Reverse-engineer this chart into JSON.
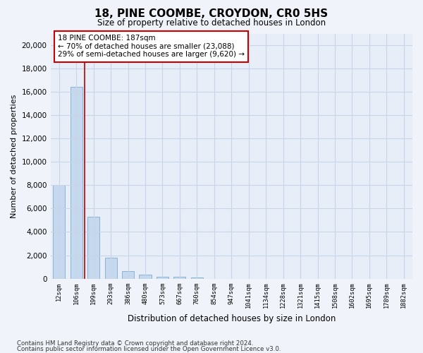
{
  "title": "18, PINE COOMBE, CROYDON, CR0 5HS",
  "subtitle": "Size of property relative to detached houses in London",
  "xlabel": "Distribution of detached houses by size in London",
  "ylabel": "Number of detached properties",
  "bar_color": "#c5d8ee",
  "bar_edge_color": "#7aadd4",
  "vline_color": "#bb0000",
  "annotation_title": "18 PINE COOMBE: 187sqm",
  "annotation_line1": "← 70% of detached houses are smaller (23,088)",
  "annotation_line2": "29% of semi-detached houses are larger (9,620) →",
  "annotation_box_color": "#cc0000",
  "categories": [
    "12sqm",
    "106sqm",
    "199sqm",
    "293sqm",
    "386sqm",
    "480sqm",
    "573sqm",
    "667sqm",
    "760sqm",
    "854sqm",
    "947sqm",
    "1041sqm",
    "1134sqm",
    "1228sqm",
    "1321sqm",
    "1415sqm",
    "1508sqm",
    "1602sqm",
    "1695sqm",
    "1789sqm",
    "1882sqm"
  ],
  "values": [
    8050,
    16450,
    5280,
    1760,
    640,
    310,
    175,
    125,
    105,
    0,
    0,
    0,
    0,
    0,
    0,
    0,
    0,
    0,
    0,
    0,
    0
  ],
  "ylim": [
    0,
    21000
  ],
  "yticks": [
    0,
    2000,
    4000,
    6000,
    8000,
    10000,
    12000,
    14000,
    16000,
    18000,
    20000
  ],
  "footnote1": "Contains HM Land Registry data © Crown copyright and database right 2024.",
  "footnote2": "Contains public sector information licensed under the Open Government Licence v3.0.",
  "background_color": "#f0f4fa",
  "plot_background_color": "#e8eef8",
  "grid_color": "#c8d4e8"
}
